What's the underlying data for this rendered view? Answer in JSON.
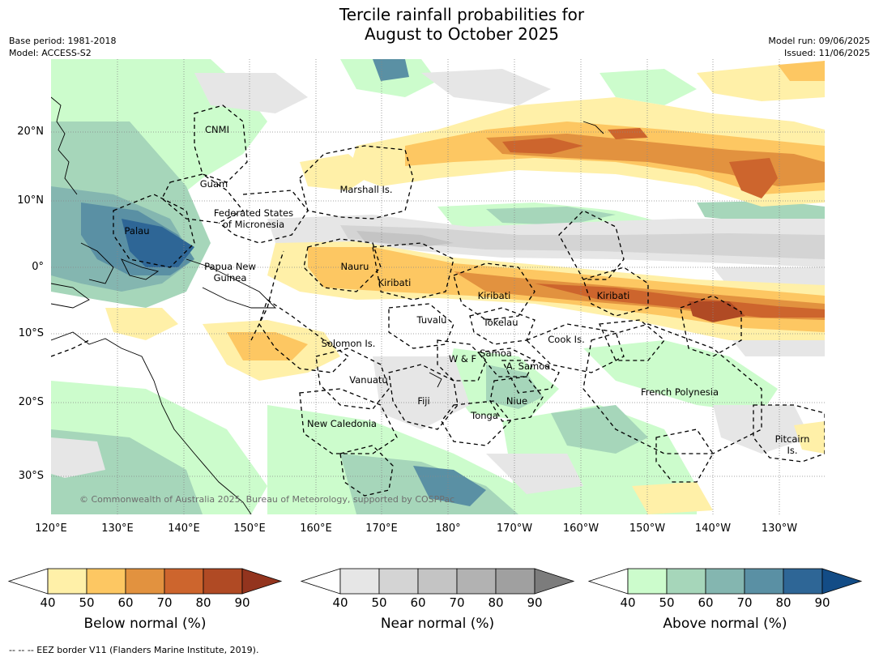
{
  "title": {
    "line1": "Tercile rainfall probabilities for",
    "line2": "August to October 2025"
  },
  "meta": {
    "base_period": "Base period: 1981-2018",
    "model": "Model: ACCESS-S2",
    "model_run": "Model run: 09/06/2025",
    "issued": "Issued: 11/06/2025"
  },
  "axes": {
    "lat_labels": [
      "20°N",
      "10°N",
      "0°",
      "10°S",
      "20°S",
      "30°S"
    ],
    "lon_labels": [
      "120°E",
      "130°E",
      "140°E",
      "150°E",
      "160°E",
      "170°E",
      "180°",
      "170°W",
      "160°W",
      "150°W",
      "140°W",
      "130°W"
    ]
  },
  "regions": [
    "CNMI",
    "Guam",
    "Marshall Is.",
    "Federated States\nof Micronesia",
    "Palau",
    "Nauru",
    "Papua New\nGuinea",
    "Kiribati",
    "Kiribati",
    "Kiribati",
    "Tuvalu",
    "Tokelau",
    "Solomon Is.",
    "Cook Is.",
    "W & F",
    "Samoa",
    "A. Samoa",
    "Vanuatu",
    "Fiji",
    "Niue",
    "French Polynesia",
    "Tonga",
    "New Caledonia",
    "Pitcairn\nIs."
  ],
  "copyright": "© Commonwealth of Australia 2025, Bureau of Meteorology, supported by COSPPac",
  "colorbars": [
    {
      "title": "Below normal (%)",
      "ticks": [
        "40",
        "50",
        "60",
        "70",
        "80",
        "90"
      ],
      "colors": [
        "#ffffff",
        "#fff0a8",
        "#fdc762",
        "#e2923f",
        "#cd652d",
        "#b04a24",
        "#93341e"
      ]
    },
    {
      "title": "Near normal (%)",
      "ticks": [
        "40",
        "50",
        "60",
        "70",
        "80",
        "90"
      ],
      "colors": [
        "#ffffff",
        "#e6e6e6",
        "#d4d4d4",
        "#c4c4c4",
        "#b2b2b2",
        "#a0a0a0",
        "#7c7c7c"
      ]
    },
    {
      "title": "Above normal (%)",
      "ticks": [
        "40",
        "50",
        "60",
        "70",
        "80",
        "90"
      ],
      "colors": [
        "#ffffff",
        "#ccfccc",
        "#a6d6ba",
        "#84b6b0",
        "#5a90a4",
        "#2e6696",
        "#134c86"
      ]
    }
  ],
  "footnote": "--  --  -- EEZ border V11 (Flanders Marine Institute, 2019)."
}
